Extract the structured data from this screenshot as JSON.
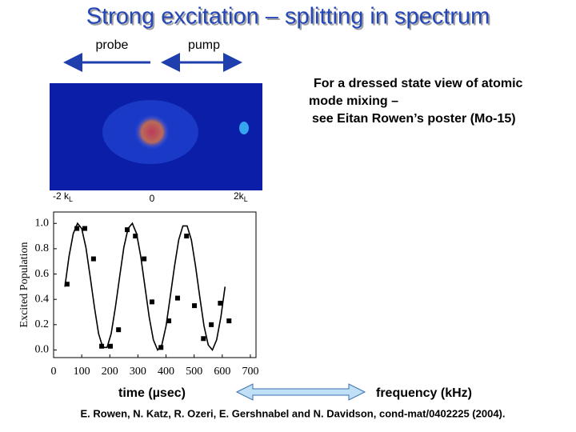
{
  "title": "Strong excitation – splitting in spectrum",
  "probe_label": "probe",
  "pump_label": "pump",
  "note": [
    "For a dressed state view of atomic",
    "mode mixing –",
    "see Eitan Rowen’s poster (Mo-15)"
  ],
  "image_labels": [
    {
      "text": "-2 k",
      "sub": "L"
    },
    {
      "text": "0"
    },
    {
      "text": "2k",
      "sub": "L"
    }
  ],
  "time_label": "time (µsec)",
  "frequency_label": "frequency (kHz)",
  "citation": "E. Rowen, N. Katz, R. Ozeri, E. Gershnabel and N. Davidson, cond-mat/0402225 (2004).",
  "chart_data": {
    "type": "scatter",
    "ylabel": "Excited Population",
    "color": "#000000",
    "x": [
      48,
      83,
      111,
      142,
      171,
      202,
      231,
      262,
      291,
      322,
      350,
      382,
      410,
      441,
      473,
      501,
      533,
      561,
      593,
      624
    ],
    "values": [
      0.52,
      0.96,
      0.96,
      0.72,
      0.03,
      0.03,
      0.16,
      0.95,
      0.9,
      0.72,
      0.38,
      0.02,
      0.23,
      0.41,
      0.9,
      0.35,
      0.09,
      0.2,
      0.37,
      0.23
    ],
    "fit": {
      "x": [
        40,
        55,
        70,
        85,
        100,
        115,
        130,
        145,
        160,
        175,
        190,
        205,
        220,
        235,
        250,
        265,
        280,
        295,
        310,
        325,
        340,
        355,
        370,
        385,
        400,
        415,
        430,
        445,
        460,
        475,
        490,
        505,
        520,
        535,
        550,
        565,
        580,
        595,
        610
      ],
      "values": [
        0.5,
        0.74,
        0.92,
        1.0,
        0.96,
        0.81,
        0.58,
        0.34,
        0.13,
        0.02,
        0.02,
        0.13,
        0.34,
        0.58,
        0.81,
        0.96,
        1.0,
        0.92,
        0.74,
        0.5,
        0.26,
        0.08,
        0.0,
        0.04,
        0.19,
        0.42,
        0.66,
        0.87,
        0.98,
        0.98,
        0.87,
        0.66,
        0.42,
        0.19,
        0.04,
        0.0,
        0.08,
        0.26,
        0.5
      ]
    },
    "xlim": [
      0,
      720
    ],
    "ylim": [
      -0.06,
      1.09
    ],
    "xticks": [
      0,
      100,
      200,
      300,
      400,
      500,
      600,
      700
    ],
    "yticks": [
      {
        "value": 0,
        "label": "0.0"
      },
      {
        "value": 0.2,
        "label": "0.2"
      },
      {
        "value": 0.4,
        "label": "0.4"
      },
      {
        "value": 0.6,
        "label": "0.6"
      },
      {
        "value": 0.8,
        "label": "0.8"
      },
      {
        "value": 1,
        "label": "1.0"
      }
    ]
  }
}
